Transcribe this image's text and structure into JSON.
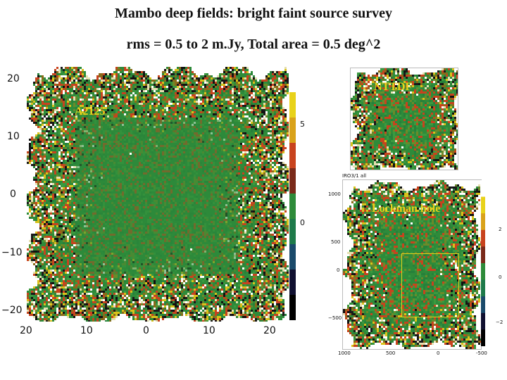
{
  "title": "Mambo deep fields: bright faint source survey",
  "subtitle": "rms = 0.5 to 2 m.Jy,   Total area = 0.5 deg^2",
  "fields": {
    "a2125": {
      "label": "A2125",
      "y_ticks": [
        "20",
        "10",
        "0",
        "−10",
        "−20"
      ],
      "x_ticks": [
        "20",
        "10",
        "0",
        "10",
        "20"
      ],
      "colorbar_ticks": [
        "5",
        "0"
      ]
    },
    "nttdf": {
      "label": "NTTDF"
    },
    "lockman": {
      "label": "Lockman hole",
      "corner_label": "IRO3/1 all",
      "y_ticks": [
        "1000",
        "500",
        "0",
        "−500"
      ],
      "x_ticks": [
        "1000",
        "500",
        "0",
        "-500"
      ],
      "colorbar_ticks": [
        "2",
        "0",
        "−2"
      ]
    }
  },
  "colors": {
    "map_green": "#2e8b3a",
    "label_yellow": "#e8d21a",
    "box_yellow": "#e8d21a"
  }
}
